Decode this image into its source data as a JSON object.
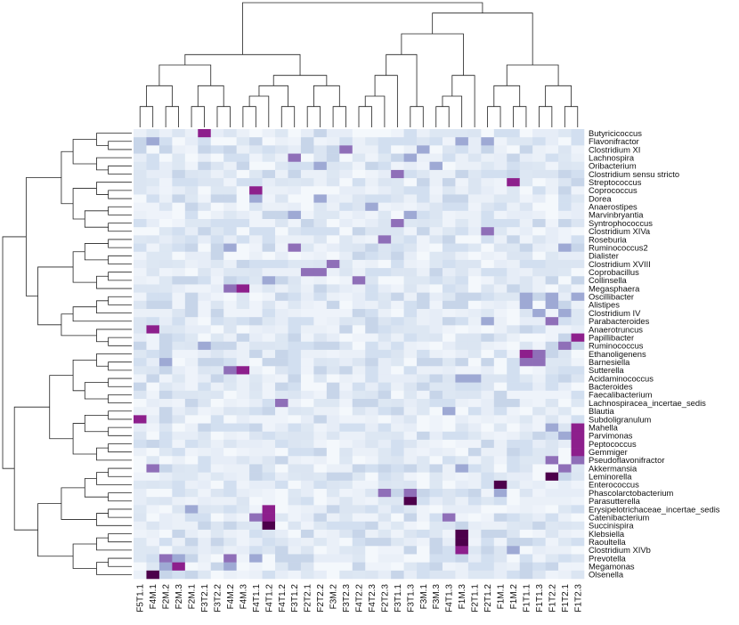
{
  "chart_data": {
    "type": "heatmap",
    "title": "",
    "colormap": {
      "low": "#f4f9fd",
      "mid_low": "#c7d5e9",
      "mid": "#8f6fb8",
      "high": "#8d1f8c",
      "max": "#4d004b"
    },
    "columns": [
      "F5T1.1",
      "F4M.1",
      "F2M.2",
      "F2M.3",
      "F2M.1",
      "F3T2.1",
      "F3T2.2",
      "F4M.2",
      "F4M.3",
      "F4T1.1",
      "F4T1.2",
      "F4T1.2",
      "F3T1.2",
      "F2T2.1",
      "F2T2.2",
      "F3M.2",
      "F3T2.3",
      "F4T2.2",
      "F4T2.3",
      "F2T2.3",
      "F3T1.1",
      "F3T1.3",
      "F3M.1",
      "F3M.3",
      "F4T1.3",
      "F1M.3",
      "F2T1.1",
      "F2T1.2",
      "F1M.1",
      "F1M.2",
      "F1T1.1",
      "F1T1.3",
      "F1T2.2",
      "F1T2.1",
      "F1T2.3"
    ],
    "rows": [
      "Butyricicoccus",
      "Flavonifractor",
      "Clostridium XI",
      "Lachnospira",
      "Oribacterium",
      "Clostridium sensu stricto",
      "Streptococcus",
      "Coprococcus",
      "Dorea",
      "Anaerostipes",
      "Marvinbryantia",
      "Syntrophococcus",
      "Clostridium XIVa",
      "Roseburia",
      "Ruminococcus2",
      "Dialister",
      "Clostridium XVIII",
      "Coprobacillus",
      "Collinsella",
      "Megasphaera",
      "Oscillibacter",
      "Alistipes",
      "Clostridium IV",
      "Parabacteroides",
      "Anaerotruncus",
      "Papillibacter",
      "Ruminococcus",
      "Ethanoligenens",
      "Barnesiella",
      "Sutterella",
      "Acidaminococcus",
      "Bacteroides",
      "Faecalibacterium",
      "Lachnospiracea_incertae_sedis",
      "Blautia",
      "Subdoligranulum",
      "Mahella",
      "Parvimonas",
      "Peptococcus",
      "Gemmiger",
      "Pseudoflavonifractor",
      "Akkermansia",
      "Leminorella",
      "Enterococcus",
      "Phascolarctobacterium",
      "Parasutterella",
      "Erysipelotrichaceae_incertae_sedis",
      "Catenibacterium",
      "Succinispira",
      "Klebsiella",
      "Raoultella",
      "Clostridium XIVb",
      "Prevotella",
      "Megamonas",
      "Olsenella"
    ],
    "highlights": [
      {
        "row": "Butyricicoccus",
        "col": 5,
        "level": 4
      },
      {
        "row": "Flavonifractor",
        "col": 1,
        "level": 2
      },
      {
        "row": "Flavonifractor",
        "col": 25,
        "level": 2
      },
      {
        "row": "Flavonifractor",
        "col": 27,
        "level": 2
      },
      {
        "row": "Clostridium XI",
        "col": 16,
        "level": 3
      },
      {
        "row": "Clostridium XI",
        "col": 22,
        "level": 2
      },
      {
        "row": "Lachnospira",
        "col": 12,
        "level": 3
      },
      {
        "row": "Lachnospira",
        "col": 21,
        "level": 2
      },
      {
        "row": "Oribacterium",
        "col": 14,
        "level": 2
      },
      {
        "row": "Oribacterium",
        "col": 23,
        "level": 2
      },
      {
        "row": "Clostridium sensu stricto",
        "col": 20,
        "level": 3
      },
      {
        "row": "Streptococcus",
        "col": 29,
        "level": 4
      },
      {
        "row": "Coprococcus",
        "col": 9,
        "level": 4
      },
      {
        "row": "Dorea",
        "col": 9,
        "level": 2
      },
      {
        "row": "Dorea",
        "col": 14,
        "level": 2
      },
      {
        "row": "Anaerostipes",
        "col": 18,
        "level": 2
      },
      {
        "row": "Marvinbryantia",
        "col": 12,
        "level": 2
      },
      {
        "row": "Marvinbryantia",
        "col": 21,
        "level": 2
      },
      {
        "row": "Syntrophococcus",
        "col": 20,
        "level": 3
      },
      {
        "row": "Clostridium XIVa",
        "col": 27,
        "level": 3
      },
      {
        "row": "Roseburia",
        "col": 19,
        "level": 3
      },
      {
        "row": "Ruminococcus2",
        "col": 12,
        "level": 3
      },
      {
        "row": "Ruminococcus2",
        "col": 7,
        "level": 2
      },
      {
        "row": "Ruminococcus2",
        "col": 33,
        "level": 2
      },
      {
        "row": "Clostridium XVIII",
        "col": 15,
        "level": 3
      },
      {
        "row": "Coprobacillus",
        "col": 13,
        "level": 3
      },
      {
        "row": "Coprobacillus",
        "col": 14,
        "level": 3
      },
      {
        "row": "Collinsella",
        "col": 17,
        "level": 3
      },
      {
        "row": "Collinsella",
        "col": 10,
        "level": 2
      },
      {
        "row": "Megasphaera",
        "col": 8,
        "level": 4
      },
      {
        "row": "Megasphaera",
        "col": 7,
        "level": 3
      },
      {
        "row": "Oscillibacter",
        "col": 30,
        "level": 2
      },
      {
        "row": "Oscillibacter",
        "col": 32,
        "level": 2
      },
      {
        "row": "Oscillibacter",
        "col": 34,
        "level": 2
      },
      {
        "row": "Alistipes",
        "col": 30,
        "level": 2
      },
      {
        "row": "Alistipes",
        "col": 32,
        "level": 2
      },
      {
        "row": "Clostridium IV",
        "col": 31,
        "level": 2
      },
      {
        "row": "Clostridium IV",
        "col": 33,
        "level": 2
      },
      {
        "row": "Parabacteroides",
        "col": 32,
        "level": 3
      },
      {
        "row": "Parabacteroides",
        "col": 27,
        "level": 2
      },
      {
        "row": "Anaerotruncus",
        "col": 1,
        "level": 4
      },
      {
        "row": "Papillibacter",
        "col": 34,
        "level": 4
      },
      {
        "row": "Ruminococcus",
        "col": 33,
        "level": 3
      },
      {
        "row": "Ruminococcus",
        "col": 5,
        "level": 2
      },
      {
        "row": "Ethanoligenens",
        "col": 30,
        "level": 4
      },
      {
        "row": "Ethanoligenens",
        "col": 31,
        "level": 3
      },
      {
        "row": "Barnesiella",
        "col": 30,
        "level": 3
      },
      {
        "row": "Barnesiella",
        "col": 31,
        "level": 3
      },
      {
        "row": "Barnesiella",
        "col": 2,
        "level": 2
      },
      {
        "row": "Sutterella",
        "col": 7,
        "level": 3
      },
      {
        "row": "Sutterella",
        "col": 8,
        "level": 4
      },
      {
        "row": "Acidaminococcus",
        "col": 25,
        "level": 2
      },
      {
        "row": "Acidaminococcus",
        "col": 26,
        "level": 2
      },
      {
        "row": "Lachnospiracea_incertae_sedis",
        "col": 11,
        "level": 3
      },
      {
        "row": "Blautia",
        "col": 24,
        "level": 2
      },
      {
        "row": "Subdoligranulum",
        "col": 0,
        "level": 4
      },
      {
        "row": "Mahella",
        "col": 32,
        "level": 2
      },
      {
        "row": "Mahella",
        "col": 34,
        "level": 4
      },
      {
        "row": "Parvimonas",
        "col": 33,
        "level": 2
      },
      {
        "row": "Parvimonas",
        "col": 34,
        "level": 4
      },
      {
        "row": "Peptococcus",
        "col": 34,
        "level": 4
      },
      {
        "row": "Gemmiger",
        "col": 34,
        "level": 4
      },
      {
        "row": "Pseudoflavonifractor",
        "col": 32,
        "level": 3
      },
      {
        "row": "Pseudoflavonifractor",
        "col": 34,
        "level": 3
      },
      {
        "row": "Akkermansia",
        "col": 1,
        "level": 3
      },
      {
        "row": "Akkermansia",
        "col": 33,
        "level": 3
      },
      {
        "row": "Akkermansia",
        "col": 25,
        "level": 2
      },
      {
        "row": "Leminorella",
        "col": 32,
        "level": 5
      },
      {
        "row": "Enterococcus",
        "col": 28,
        "level": 5
      },
      {
        "row": "Phascolarctobacterium",
        "col": 19,
        "level": 3
      },
      {
        "row": "Phascolarctobacterium",
        "col": 21,
        "level": 3
      },
      {
        "row": "Phascolarctobacterium",
        "col": 28,
        "level": 2
      },
      {
        "row": "Parasutterella",
        "col": 21,
        "level": 5
      },
      {
        "row": "Erysipelotrichaceae_incertae_sedis",
        "col": 10,
        "level": 4
      },
      {
        "row": "Erysipelotrichaceae_incertae_sedis",
        "col": 4,
        "level": 2
      },
      {
        "row": "Catenibacterium",
        "col": 9,
        "level": 3
      },
      {
        "row": "Catenibacterium",
        "col": 10,
        "level": 4
      },
      {
        "row": "Catenibacterium",
        "col": 24,
        "level": 3
      },
      {
        "row": "Succinispira",
        "col": 10,
        "level": 5
      },
      {
        "row": "Klebsiella",
        "col": 25,
        "level": 5
      },
      {
        "row": "Raoultella",
        "col": 25,
        "level": 5
      },
      {
        "row": "Clostridium XIVb",
        "col": 25,
        "level": 4
      },
      {
        "row": "Clostridium XIVb",
        "col": 29,
        "level": 2
      },
      {
        "row": "Prevotella",
        "col": 2,
        "level": 3
      },
      {
        "row": "Prevotella",
        "col": 3,
        "level": 2
      },
      {
        "row": "Prevotella",
        "col": 7,
        "level": 3
      },
      {
        "row": "Prevotella",
        "col": 9,
        "level": 2
      },
      {
        "row": "Megamonas",
        "col": 3,
        "level": 4
      },
      {
        "row": "Megamonas",
        "col": 2,
        "level": 2
      },
      {
        "row": "Megamonas",
        "col": 7,
        "level": 2
      },
      {
        "row": "Olsenella",
        "col": 1,
        "level": 5
      }
    ]
  }
}
